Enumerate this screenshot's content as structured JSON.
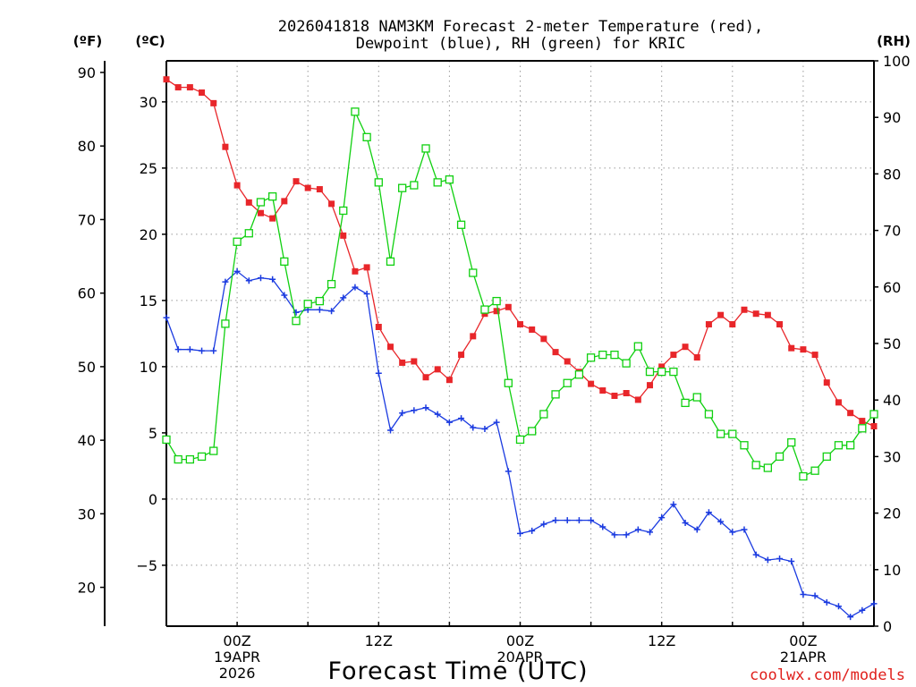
{
  "chart_data": {
    "type": "line",
    "title_line1": "2026041818 NAM3KM Forecast 2-meter Temperature (red),",
    "title_line2": "Dewpoint (blue), RH (green) for KRIC",
    "unit_f": "(ºF)",
    "unit_c": "(ºC)",
    "unit_rh": "(RH)",
    "xlabel": "Forecast Time (UTC)",
    "credit": "coolwx.com/models",
    "colors": {
      "temp": "#e8262a",
      "dew": "#1a3ae0",
      "rh": "#10d010",
      "grid": "#9a9a9a",
      "axis": "#000000"
    },
    "x_range_hours": [
      -6,
      54
    ],
    "x_ticks": [
      {
        "h": 0,
        "lines": [
          "00Z",
          "19APR",
          "2026"
        ]
      },
      {
        "h": 12,
        "lines": [
          "12Z"
        ]
      },
      {
        "h": 24,
        "lines": [
          "00Z",
          "20APR"
        ]
      },
      {
        "h": 36,
        "lines": [
          "12Z"
        ]
      },
      {
        "h": 48,
        "lines": [
          "00Z",
          "21APR"
        ]
      }
    ],
    "c_range": [
      -9.6,
      33.1
    ],
    "c_ticks": [
      -5,
      0,
      5,
      10,
      15,
      20,
      25,
      30
    ],
    "c_tick_labels": [
      "−5",
      "0",
      "5",
      "10",
      "15",
      "20",
      "25",
      "30"
    ],
    "f_ticks": [
      20,
      30,
      40,
      50,
      60,
      70,
      80,
      90
    ],
    "f_tick_labels": [
      "20",
      "30",
      "40",
      "50",
      "60",
      "70",
      "80",
      "90"
    ],
    "rh_range": [
      0,
      100
    ],
    "rh_ticks": [
      0,
      10,
      20,
      30,
      40,
      50,
      60,
      70,
      80,
      90,
      100
    ],
    "rh_tick_labels": [
      "0",
      "10",
      "20",
      "30",
      "40",
      "50",
      "60",
      "70",
      "80",
      "90",
      "100"
    ],
    "series": [
      {
        "name": "Temperature",
        "unit": "C",
        "x": [
          -6,
          -5,
          -4,
          -3,
          -2,
          -1,
          0,
          1,
          2,
          3,
          4,
          5,
          6,
          7,
          8,
          9,
          10,
          11,
          12,
          13,
          14,
          15,
          16,
          17,
          18,
          19,
          20,
          21,
          22,
          23,
          24,
          25,
          26,
          27,
          28,
          29,
          30,
          31,
          32,
          33,
          34,
          35,
          36,
          37,
          38,
          39,
          40,
          41,
          42,
          43,
          44,
          45,
          46,
          47,
          48,
          49,
          50,
          51,
          52,
          53,
          54
        ],
        "values": [
          31.7,
          31.1,
          31.1,
          30.7,
          29.9,
          26.6,
          23.7,
          22.4,
          21.6,
          21.2,
          22.5,
          24.0,
          23.5,
          23.4,
          22.3,
          19.9,
          17.2,
          17.5,
          13.0,
          11.5,
          10.3,
          10.4,
          9.2,
          9.8,
          9.0,
          10.9,
          12.3,
          14.0,
          14.2,
          14.5,
          13.2,
          12.8,
          12.1,
          11.1,
          10.4,
          9.6,
          8.7,
          8.2,
          7.8,
          8.0,
          7.5,
          8.6,
          10.0,
          10.9,
          11.5,
          10.7,
          13.2,
          13.9,
          13.2,
          14.3,
          14.0,
          13.9,
          13.2,
          11.4,
          11.3,
          10.9,
          8.8,
          7.3,
          6.5,
          5.9,
          5.5
        ]
      },
      {
        "name": "Dewpoint",
        "unit": "C",
        "x": [
          -6,
          -5,
          -4,
          -3,
          -2,
          -1,
          0,
          1,
          2,
          3,
          4,
          5,
          6,
          7,
          8,
          9,
          10,
          11,
          12,
          13,
          14,
          15,
          16,
          17,
          18,
          19,
          20,
          21,
          22,
          23,
          24,
          25,
          26,
          27,
          28,
          29,
          30,
          31,
          32,
          33,
          34,
          35,
          36,
          37,
          38,
          39,
          40,
          41,
          42,
          43,
          44,
          45,
          46,
          47,
          48,
          49,
          50,
          51,
          52,
          53,
          54
        ],
        "values": [
          13.7,
          11.3,
          11.3,
          11.2,
          11.2,
          16.4,
          17.2,
          16.5,
          16.7,
          16.6,
          15.4,
          14.1,
          14.3,
          14.3,
          14.2,
          15.2,
          16.0,
          15.5,
          9.5,
          5.2,
          6.5,
          6.7,
          6.9,
          6.4,
          5.8,
          6.1,
          5.4,
          5.3,
          5.8,
          2.1,
          -2.6,
          -2.4,
          -1.9,
          -1.6,
          -1.6,
          -1.6,
          -1.6,
          -2.1,
          -2.7,
          -2.7,
          -2.3,
          -2.5,
          -1.4,
          -0.4,
          -1.8,
          -2.3,
          -1.0,
          -1.7,
          -2.5,
          -2.3,
          -4.2,
          -4.6,
          -4.5,
          -4.7,
          -7.2,
          -7.3,
          -7.8,
          -8.1,
          -8.9,
          -8.4,
          -7.9
        ]
      },
      {
        "name": "RH",
        "unit": "%",
        "x": [
          -6,
          -5,
          -4,
          -3,
          -2,
          -1,
          0,
          1,
          2,
          3,
          4,
          5,
          6,
          7,
          8,
          9,
          10,
          11,
          12,
          13,
          14,
          15,
          16,
          17,
          18,
          19,
          20,
          21,
          22,
          23,
          24,
          25,
          26,
          27,
          28,
          29,
          30,
          31,
          32,
          33,
          34,
          35,
          36,
          37,
          38,
          39,
          40,
          41,
          42,
          43,
          44,
          45,
          46,
          47,
          48,
          49,
          50,
          51,
          52,
          53,
          54
        ],
        "values": [
          33,
          29.5,
          29.5,
          30,
          31,
          53.5,
          68,
          69.5,
          75,
          76,
          64.5,
          54,
          57,
          57.5,
          60.5,
          73.5,
          91,
          86.5,
          78.5,
          64.5,
          77.5,
          78,
          84.5,
          78.5,
          79,
          71,
          62.5,
          56,
          57.5,
          43,
          33,
          34.5,
          37.5,
          41,
          43,
          44.5,
          47.5,
          48,
          48,
          46.5,
          49.5,
          45,
          45,
          45,
          39.5,
          40.5,
          37.5,
          34,
          34,
          32,
          28.5,
          28,
          30,
          32.5,
          26.5,
          27.5,
          30,
          32,
          32,
          35,
          37.5
        ]
      }
    ]
  }
}
